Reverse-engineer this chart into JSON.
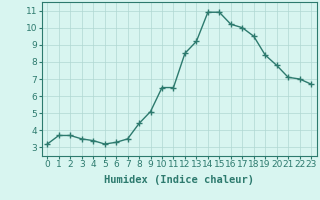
{
  "x": [
    0,
    1,
    2,
    3,
    4,
    5,
    6,
    7,
    8,
    9,
    10,
    11,
    12,
    13,
    14,
    15,
    16,
    17,
    18,
    19,
    20,
    21,
    22,
    23
  ],
  "y": [
    3.2,
    3.7,
    3.7,
    3.5,
    3.4,
    3.2,
    3.3,
    3.5,
    4.4,
    5.1,
    6.5,
    6.5,
    8.5,
    9.2,
    10.9,
    10.9,
    10.2,
    10.0,
    9.5,
    8.4,
    7.8,
    7.1,
    7.0,
    6.7
  ],
  "xlabel": "Humidex (Indice chaleur)",
  "ylim": [
    2.5,
    11.5
  ],
  "xlim": [
    -0.5,
    23.5
  ],
  "yticks": [
    3,
    4,
    5,
    6,
    7,
    8,
    9,
    10,
    11
  ],
  "xticks": [
    0,
    1,
    2,
    3,
    4,
    5,
    6,
    7,
    8,
    9,
    10,
    11,
    12,
    13,
    14,
    15,
    16,
    17,
    18,
    19,
    20,
    21,
    22,
    23
  ],
  "line_color": "#2d7a6e",
  "marker": "+",
  "bg_color": "#d8f5f0",
  "grid_color": "#b0d8d2",
  "xlabel_fontsize": 7.5,
  "tick_fontsize": 6.5,
  "linewidth": 1.0,
  "markersize": 4,
  "markeredgewidth": 1.0
}
